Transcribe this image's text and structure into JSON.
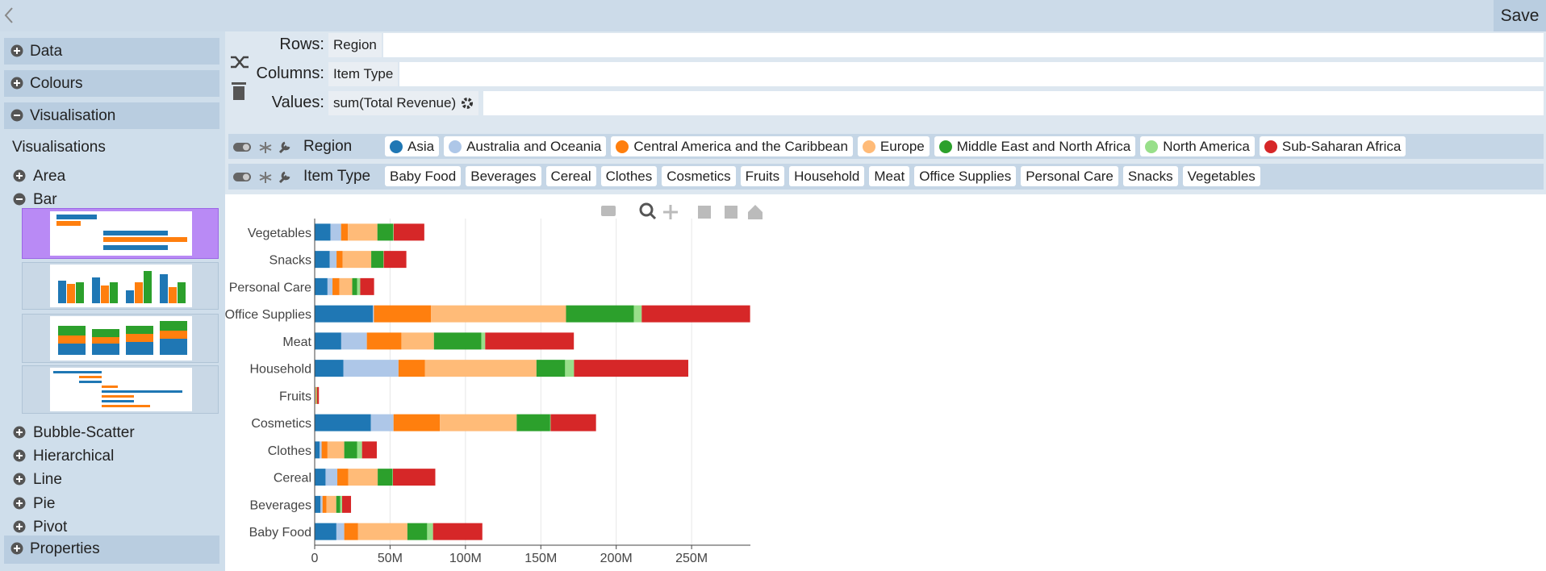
{
  "toolbar": {
    "save": "Save"
  },
  "sidebar": {
    "sections": [
      "Data",
      "Colours",
      "Visualisation"
    ],
    "visualisations_title": "Visualisations",
    "vis_types": [
      "Area",
      "Bar",
      "Bubble-Scatter",
      "Hierarchical",
      "Line",
      "Pie",
      "Pivot"
    ],
    "properties": "Properties"
  },
  "config": {
    "rows_label": "Rows:",
    "rows": "Region",
    "columns_label": "Columns:",
    "columns": "Item Type",
    "values_label": "Values:",
    "values": "sum(Total Revenue)"
  },
  "filters": {
    "region_label": "Region",
    "item_type_label": "Item Type"
  },
  "chart_data": {
    "type": "stacked-barh",
    "categories": [
      "Baby Food",
      "Beverages",
      "Cereal",
      "Clothes",
      "Cosmetics",
      "Fruits",
      "Household",
      "Meat",
      "Office Supplies",
      "Personal Care",
      "Snacks",
      "Vegetables"
    ],
    "series": [
      {
        "name": "Asia",
        "color": "#1f77b4",
        "values": [
          14400000,
          3900000,
          7200000,
          3300000,
          37300000,
          300000,
          19000000,
          17600000,
          38600000,
          8500000,
          10000000,
          10500000
        ]
      },
      {
        "name": "Australia and Oceania",
        "color": "#aec7e8",
        "values": [
          5200000,
          1300000,
          7800000,
          1300000,
          15000000,
          200000,
          36600000,
          17000000,
          700000,
          3300000,
          4500000,
          7000000
        ]
      },
      {
        "name": "Central America and the Caribbean",
        "color": "#ff7f0e",
        "values": [
          9200000,
          2600000,
          7200000,
          3900000,
          30700000,
          300000,
          17600000,
          22900000,
          37900000,
          4600000,
          4000000,
          4500000
        ]
      },
      {
        "name": "Europe",
        "color": "#ffbb78",
        "values": [
          32700000,
          6500000,
          19600000,
          11100000,
          51000000,
          400000,
          73900000,
          21600000,
          89500000,
          8500000,
          19000000,
          19600000
        ]
      },
      {
        "name": "Middle East and North Africa",
        "color": "#2ca02c",
        "values": [
          13100000,
          2600000,
          9800000,
          8500000,
          22200000,
          300000,
          19000000,
          31400000,
          45000000,
          3300000,
          8000000,
          10500000
        ]
      },
      {
        "name": "North America",
        "color": "#98df8a",
        "values": [
          3900000,
          1300000,
          300000,
          3300000,
          300000,
          100000,
          5900000,
          2600000,
          5200000,
          2000000,
          300000,
          300000
        ]
      },
      {
        "name": "Sub-Saharan Africa",
        "color": "#d62728",
        "values": [
          32700000,
          5900000,
          28100000,
          9800000,
          30100000,
          1200000,
          75800000,
          58800000,
          71900000,
          9200000,
          15000000,
          20300000
        ]
      }
    ],
    "xlim": [
      0,
      289000000
    ],
    "xticks": [
      0,
      {
        "value": 50000000,
        "label": "50M"
      },
      {
        "value": 100000000,
        "label": "100M"
      },
      {
        "value": 150000000,
        "label": "150M"
      },
      {
        "value": 200000000,
        "label": "200M"
      },
      {
        "value": 250000000,
        "label": "250M"
      }
    ],
    "grid": true
  }
}
